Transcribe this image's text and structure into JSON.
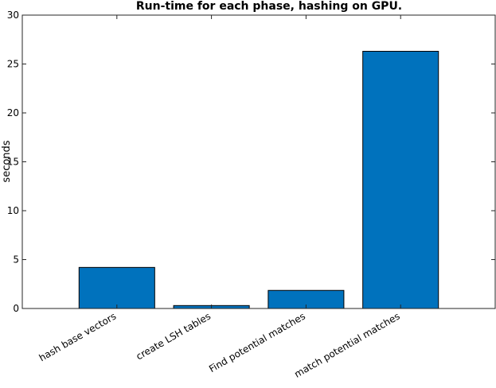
{
  "chart_data": {
    "type": "bar",
    "title": "Run-time for each phase, hashing on GPU.",
    "xlabel": "",
    "ylabel": "seconds",
    "categories": [
      "hash base vectors",
      "create LSH tables",
      "Find potential matches",
      "match potential matches"
    ],
    "values": [
      4.2,
      0.3,
      1.85,
      26.3
    ],
    "ylim": [
      0,
      30
    ],
    "yticks": [
      0,
      5,
      10,
      15,
      20,
      25,
      30
    ],
    "grid": false,
    "bar_color": "#0072BD"
  }
}
